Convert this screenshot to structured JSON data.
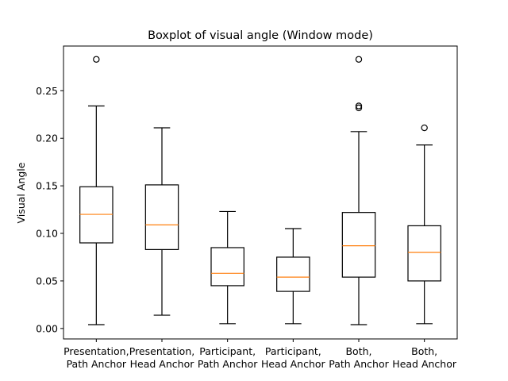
{
  "chart_data": {
    "type": "box",
    "title": "Boxplot of visual angle (Window mode)",
    "xlabel": "",
    "ylabel": "Visual Angle",
    "ylim": [
      -0.011,
      0.297
    ],
    "yticks": [
      0.0,
      0.05,
      0.1,
      0.15,
      0.2,
      0.25
    ],
    "ytick_labels": [
      "0.00",
      "0.05",
      "0.10",
      "0.15",
      "0.20",
      "0.25"
    ],
    "grid": false,
    "median_color": "#ff7f0e",
    "box_color": "#000000",
    "categories": [
      [
        "Presentation,",
        "Path Anchor"
      ],
      [
        "Presentation,",
        "Head Anchor"
      ],
      [
        "Participant,",
        "Path Anchor"
      ],
      [
        "Participant,",
        "Head Anchor"
      ],
      [
        "Both,",
        "Path Anchor"
      ],
      [
        "Both,",
        "Head Anchor"
      ]
    ],
    "boxes": [
      {
        "whisker_low": 0.004,
        "q1": 0.09,
        "median": 0.12,
        "q3": 0.149,
        "whisker_high": 0.234,
        "outliers": [
          0.283
        ]
      },
      {
        "whisker_low": 0.014,
        "q1": 0.083,
        "median": 0.109,
        "q3": 0.151,
        "whisker_high": 0.211,
        "outliers": []
      },
      {
        "whisker_low": 0.005,
        "q1": 0.045,
        "median": 0.058,
        "q3": 0.085,
        "whisker_high": 0.123,
        "outliers": []
      },
      {
        "whisker_low": 0.005,
        "q1": 0.039,
        "median": 0.054,
        "q3": 0.075,
        "whisker_high": 0.105,
        "outliers": []
      },
      {
        "whisker_low": 0.004,
        "q1": 0.054,
        "median": 0.087,
        "q3": 0.122,
        "whisker_high": 0.207,
        "outliers": [
          0.232,
          0.234,
          0.283
        ]
      },
      {
        "whisker_low": 0.005,
        "q1": 0.05,
        "median": 0.08,
        "q3": 0.108,
        "whisker_high": 0.193,
        "outliers": [
          0.211
        ]
      }
    ]
  }
}
